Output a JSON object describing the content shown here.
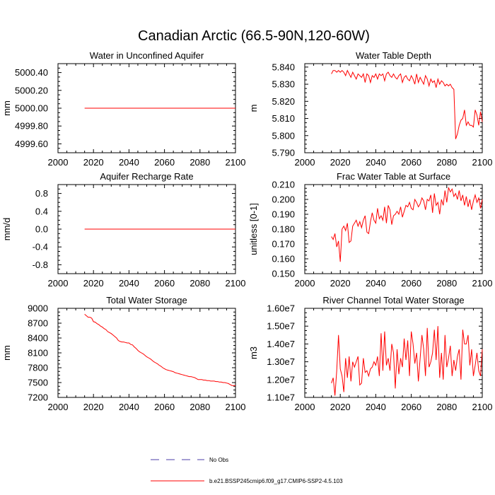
{
  "figure_title": "Canadian Arctic (66.5-90N,120-60W)",
  "legend": {
    "placement": "bottom-center",
    "entries": [
      {
        "label": "No Obs",
        "color": "#4b3ca8",
        "style": "dashed"
      },
      {
        "label": "b.e21.BSSP245cmip6.f09_g17.CMIP6-SSP2-4.5.103",
        "color": "#ff0000",
        "style": "solid"
      }
    ]
  },
  "chart_data": [
    {
      "type": "line",
      "title": "Water in Unconfined Aquifer",
      "xlabel": "",
      "ylabel": "mm",
      "xlim": [
        2000,
        2100
      ],
      "ylim": [
        4999.5,
        5000.5
      ],
      "xticks": [
        "2000",
        "2020",
        "2040",
        "2060",
        "2080",
        "2100"
      ],
      "yticks": [
        "4999.60",
        "4999.80",
        "5000.00",
        "5000.20",
        "5000.40"
      ],
      "color": "#ff0000",
      "x": [
        2015,
        2100
      ],
      "y": [
        5000.0,
        5000.0
      ]
    },
    {
      "type": "line",
      "title": "Water Table Depth",
      "xlabel": "",
      "ylabel": "m",
      "xlim": [
        2000,
        2100
      ],
      "ylim": [
        5.79,
        5.842
      ],
      "xticks": [
        "2000",
        "2020",
        "2040",
        "2060",
        "2080",
        "2100"
      ],
      "yticks": [
        "5.790",
        "5.800",
        "5.810",
        "5.820",
        "5.830",
        "5.840"
      ],
      "color": "#ff0000",
      "x": [
        2015,
        2016,
        2017,
        2018,
        2019,
        2020,
        2021,
        2022,
        2023,
        2024,
        2025,
        2026,
        2027,
        2028,
        2029,
        2030,
        2031,
        2032,
        2033,
        2034,
        2035,
        2036,
        2037,
        2038,
        2039,
        2040,
        2041,
        2042,
        2043,
        2044,
        2045,
        2046,
        2047,
        2048,
        2049,
        2050,
        2051,
        2052,
        2053,
        2054,
        2055,
        2056,
        2057,
        2058,
        2059,
        2060,
        2061,
        2062,
        2063,
        2064,
        2065,
        2066,
        2067,
        2068,
        2069,
        2070,
        2071,
        2072,
        2073,
        2074,
        2075,
        2076,
        2077,
        2078,
        2079,
        2080,
        2081,
        2082,
        2083,
        2084,
        2085,
        2086,
        2087,
        2088,
        2089,
        2090,
        2091,
        2092,
        2093,
        2094,
        2095,
        2096,
        2097,
        2098,
        2099,
        2100
      ],
      "y": [
        5.836,
        5.838,
        5.838,
        5.837,
        5.838,
        5.837,
        5.838,
        5.837,
        5.835,
        5.838,
        5.836,
        5.834,
        5.837,
        5.835,
        5.833,
        5.836,
        5.835,
        5.834,
        5.836,
        5.831,
        5.836,
        5.835,
        5.831,
        5.835,
        5.834,
        5.836,
        5.833,
        5.836,
        5.835,
        5.836,
        5.832,
        5.836,
        5.837,
        5.835,
        5.834,
        5.836,
        5.834,
        5.833,
        5.835,
        5.836,
        5.831,
        5.834,
        5.835,
        5.833,
        5.832,
        5.835,
        5.833,
        5.83,
        5.836,
        5.831,
        5.834,
        5.832,
        5.83,
        5.835,
        5.833,
        5.829,
        5.833,
        5.831,
        5.832,
        5.828,
        5.833,
        5.83,
        5.832,
        5.831,
        5.829,
        5.83,
        5.829,
        5.83,
        5.828,
        5.827,
        5.798,
        5.801,
        5.806,
        5.809,
        5.81,
        5.815,
        5.806,
        5.808,
        5.806,
        5.806,
        5.805,
        5.815,
        5.812,
        5.806,
        5.814,
        5.808
      ]
    },
    {
      "type": "line",
      "title": "Aquifer Recharge Rate",
      "xlabel": "",
      "ylabel": "mm/d",
      "xlim": [
        2000,
        2100
      ],
      "ylim": [
        -1.0,
        1.0
      ],
      "xticks": [
        "2000",
        "2020",
        "2040",
        "2060",
        "2080",
        "2100"
      ],
      "yticks": [
        "-0.8",
        "-0.4",
        "0.0",
        "0.4",
        "0.8"
      ],
      "color": "#ff0000",
      "x": [
        2015,
        2100
      ],
      "y": [
        0.0,
        0.0
      ]
    },
    {
      "type": "line",
      "title": "Frac Water Table at Surface",
      "xlabel": "",
      "ylabel": "unitless [0-1]",
      "xlim": [
        2000,
        2100
      ],
      "ylim": [
        0.15,
        0.21
      ],
      "xticks": [
        "2000",
        "2020",
        "2040",
        "2060",
        "2080",
        "2100"
      ],
      "yticks": [
        "0.150",
        "0.160",
        "0.170",
        "0.180",
        "0.190",
        "0.200",
        "0.210"
      ],
      "color": "#ff0000",
      "x": [
        2015,
        2016,
        2017,
        2018,
        2019,
        2020,
        2021,
        2022,
        2023,
        2024,
        2025,
        2026,
        2027,
        2028,
        2029,
        2030,
        2031,
        2032,
        2033,
        2034,
        2035,
        2036,
        2037,
        2038,
        2039,
        2040,
        2041,
        2042,
        2043,
        2044,
        2045,
        2046,
        2047,
        2048,
        2049,
        2050,
        2051,
        2052,
        2053,
        2054,
        2055,
        2056,
        2057,
        2058,
        2059,
        2060,
        2061,
        2062,
        2063,
        2064,
        2065,
        2066,
        2067,
        2068,
        2069,
        2070,
        2071,
        2072,
        2073,
        2074,
        2075,
        2076,
        2077,
        2078,
        2079,
        2080,
        2081,
        2082,
        2083,
        2084,
        2085,
        2086,
        2087,
        2088,
        2089,
        2090,
        2091,
        2092,
        2093,
        2094,
        2095,
        2096,
        2097,
        2098,
        2099,
        2100
      ],
      "y": [
        0.175,
        0.173,
        0.177,
        0.168,
        0.172,
        0.158,
        0.18,
        0.182,
        0.179,
        0.184,
        0.171,
        0.172,
        0.182,
        0.184,
        0.186,
        0.182,
        0.185,
        0.181,
        0.186,
        0.189,
        0.178,
        0.177,
        0.185,
        0.191,
        0.186,
        0.184,
        0.194,
        0.187,
        0.189,
        0.186,
        0.195,
        0.184,
        0.196,
        0.193,
        0.183,
        0.189,
        0.19,
        0.192,
        0.19,
        0.195,
        0.188,
        0.192,
        0.196,
        0.195,
        0.198,
        0.194,
        0.193,
        0.2,
        0.198,
        0.195,
        0.197,
        0.201,
        0.199,
        0.193,
        0.2,
        0.199,
        0.203,
        0.191,
        0.204,
        0.196,
        0.198,
        0.19,
        0.2,
        0.196,
        0.206,
        0.198,
        0.208,
        0.205,
        0.207,
        0.202,
        0.204,
        0.2,
        0.206,
        0.199,
        0.203,
        0.196,
        0.202,
        0.195,
        0.2,
        0.193,
        0.199,
        0.203,
        0.198,
        0.201,
        0.194,
        0.2
      ]
    },
    {
      "type": "line",
      "title": "Total Water Storage",
      "xlabel": "",
      "ylabel": "mm",
      "xlim": [
        2000,
        2100
      ],
      "ylim": [
        7200,
        9000
      ],
      "xticks": [
        "2000",
        "2020",
        "2040",
        "2060",
        "2080",
        "2100"
      ],
      "yticks": [
        "7200",
        "7500",
        "7800",
        "8100",
        "8400",
        "8700",
        "9000"
      ],
      "color": "#ff0000",
      "x": [
        2015,
        2016,
        2017,
        2018,
        2019,
        2020,
        2021,
        2022,
        2023,
        2024,
        2025,
        2026,
        2027,
        2028,
        2029,
        2030,
        2031,
        2032,
        2033,
        2034,
        2035,
        2036,
        2037,
        2038,
        2039,
        2040,
        2041,
        2042,
        2043,
        2044,
        2045,
        2046,
        2047,
        2048,
        2049,
        2050,
        2051,
        2052,
        2053,
        2054,
        2055,
        2056,
        2057,
        2058,
        2059,
        2060,
        2061,
        2062,
        2063,
        2064,
        2065,
        2066,
        2067,
        2068,
        2069,
        2070,
        2071,
        2072,
        2073,
        2074,
        2075,
        2076,
        2077,
        2078,
        2079,
        2080,
        2081,
        2082,
        2083,
        2084,
        2085,
        2086,
        2087,
        2088,
        2089,
        2090,
        2091,
        2092,
        2093,
        2094,
        2095,
        2096,
        2097,
        2098,
        2099,
        2100
      ],
      "y": [
        8880,
        8850,
        8820,
        8820,
        8800,
        8730,
        8720,
        8690,
        8670,
        8640,
        8620,
        8590,
        8570,
        8530,
        8510,
        8490,
        8460,
        8430,
        8400,
        8350,
        8330,
        8320,
        8320,
        8310,
        8300,
        8300,
        8270,
        8260,
        8220,
        8190,
        8150,
        8120,
        8100,
        8080,
        8050,
        8020,
        8000,
        7980,
        7950,
        7920,
        7900,
        7880,
        7850,
        7830,
        7800,
        7780,
        7760,
        7750,
        7740,
        7730,
        7720,
        7700,
        7690,
        7680,
        7670,
        7660,
        7650,
        7640,
        7630,
        7620,
        7620,
        7610,
        7600,
        7580,
        7560,
        7560,
        7560,
        7550,
        7550,
        7540,
        7540,
        7530,
        7530,
        7530,
        7520,
        7520,
        7510,
        7510,
        7500,
        7500,
        7490,
        7480,
        7460,
        7440,
        7440,
        7440
      ]
    },
    {
      "type": "line",
      "title": "River Channel Total Water Storage",
      "xlabel": "",
      "ylabel": "m3",
      "xlim": [
        2000,
        2100
      ],
      "ylim": [
        11000000,
        16000000
      ],
      "xticks": [
        "2000",
        "2020",
        "2040",
        "2060",
        "2080",
        "2100"
      ],
      "yticks": [
        "1.10e7",
        "1.20e7",
        "1.30e7",
        "1.40e7",
        "1.50e7",
        "1.60e7"
      ],
      "color": "#ff0000",
      "x": [
        2015,
        2016,
        2017,
        2018,
        2019,
        2020,
        2021,
        2022,
        2023,
        2024,
        2025,
        2026,
        2027,
        2028,
        2029,
        2030,
        2031,
        2032,
        2033,
        2034,
        2035,
        2036,
        2037,
        2038,
        2039,
        2040,
        2041,
        2042,
        2043,
        2044,
        2045,
        2046,
        2047,
        2048,
        2049,
        2050,
        2051,
        2052,
        2053,
        2054,
        2055,
        2056,
        2057,
        2058,
        2059,
        2060,
        2061,
        2062,
        2063,
        2064,
        2065,
        2066,
        2067,
        2068,
        2069,
        2070,
        2071,
        2072,
        2073,
        2074,
        2075,
        2076,
        2077,
        2078,
        2079,
        2080,
        2081,
        2082,
        2083,
        2084,
        2085,
        2086,
        2087,
        2088,
        2089,
        2090,
        2091,
        2092,
        2093,
        2094,
        2095,
        2096,
        2097,
        2098,
        2099,
        2100
      ],
      "y": [
        11800000,
        12100000,
        11100000,
        12500000,
        14500000,
        12600000,
        12200000,
        11300000,
        13200000,
        12100000,
        13300000,
        11900000,
        13000000,
        12700000,
        13000000,
        13300000,
        11700000,
        11800000,
        13200000,
        12400000,
        12500000,
        12200000,
        12600000,
        12700000,
        13000000,
        12800000,
        13300000,
        12200000,
        14600000,
        12500000,
        14700000,
        12800000,
        13200000,
        12500000,
        14000000,
        13500000,
        11500000,
        13700000,
        12300000,
        13200000,
        12700000,
        14300000,
        13100000,
        14200000,
        12200000,
        14700000,
        14000000,
        12900000,
        13500000,
        11900000,
        13200000,
        14500000,
        13700000,
        12200000,
        14900000,
        12700000,
        13000000,
        13500000,
        14800000,
        13100000,
        15000000,
        12100000,
        13500000,
        12000000,
        14500000,
        12700000,
        13200000,
        13900000,
        12200000,
        13100000,
        12500000,
        13300000,
        13700000,
        12000000,
        14800000,
        14000000,
        14000000,
        14500000,
        12800000,
        13700000,
        12200000,
        12800000,
        13500000,
        12500000,
        12200000,
        13700000
      ]
    }
  ]
}
